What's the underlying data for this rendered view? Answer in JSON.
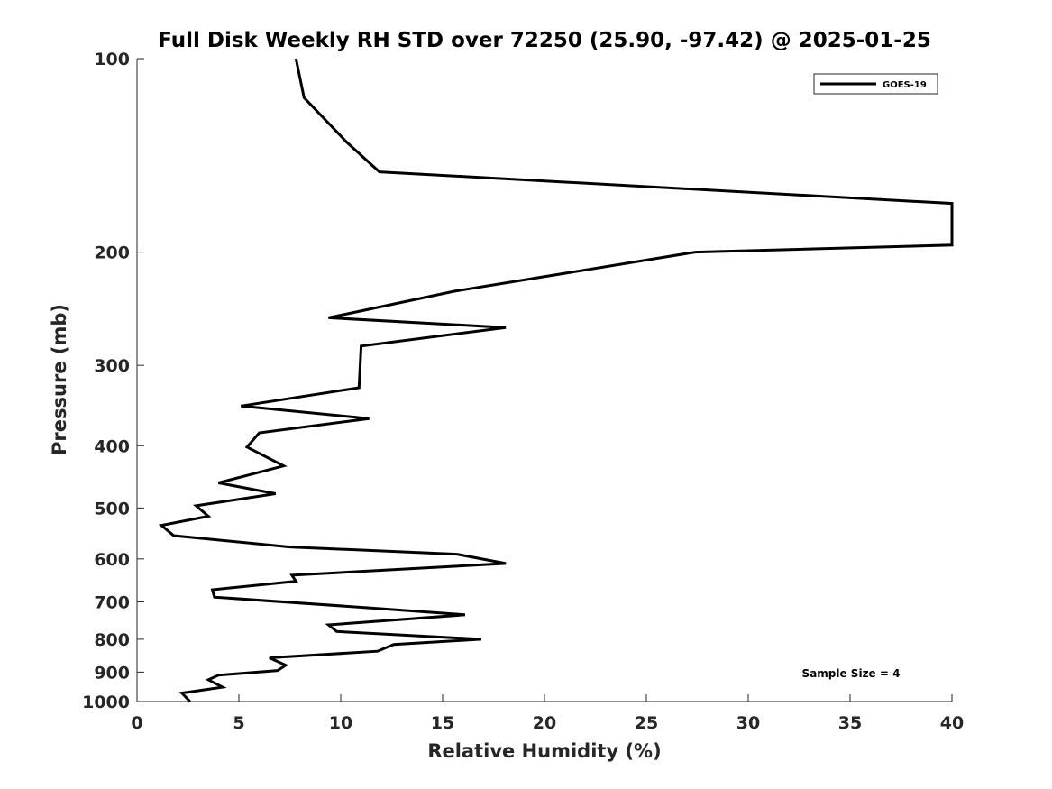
{
  "chart_data": {
    "type": "line",
    "title": "Full Disk Weekly RH STD over 72250 (25.90, -97.42) @ 2025-01-25",
    "xlabel": "Relative Humidity (%)",
    "ylabel": "Pressure (mb)",
    "xlim": [
      0,
      40
    ],
    "ylim": [
      100,
      1000
    ],
    "yscale": "log",
    "ydirection": "reverse",
    "xticks": [
      "0",
      "5",
      "10",
      "15",
      "20",
      "25",
      "30",
      "35",
      "40"
    ],
    "yticks": [
      "100",
      "200",
      "300",
      "400",
      "500",
      "600",
      "700",
      "800",
      "900",
      "1000"
    ],
    "legend": {
      "entries": [
        "GOES-19"
      ],
      "location": "top-right"
    },
    "annotation": "Sample Size = 4",
    "series": [
      {
        "name": "GOES-19",
        "color": "#000000",
        "points": [
          [
            7.8,
            100
          ],
          [
            8.2,
            115
          ],
          [
            10.3,
            135
          ],
          [
            11.9,
            150
          ],
          [
            40,
            168
          ],
          [
            40,
            195
          ],
          [
            27.4,
            200
          ],
          [
            15.6,
            230
          ],
          [
            9.4,
            253
          ],
          [
            18.1,
            262
          ],
          [
            11.0,
            280
          ],
          [
            10.9,
            325
          ],
          [
            5.1,
            347
          ],
          [
            11.4,
            363
          ],
          [
            6.0,
            382
          ],
          [
            5.4,
            402
          ],
          [
            7.2,
            430
          ],
          [
            4.0,
            457
          ],
          [
            6.8,
            475
          ],
          [
            2.9,
            496
          ],
          [
            3.5,
            515
          ],
          [
            1.2,
            532
          ],
          [
            1.8,
            552
          ],
          [
            7.5,
            575
          ],
          [
            15.7,
            590
          ],
          [
            18.1,
            610
          ],
          [
            7.6,
            636
          ],
          [
            7.8,
            650
          ],
          [
            3.7,
            670
          ],
          [
            3.8,
            688
          ],
          [
            11.4,
            715
          ],
          [
            16.1,
            733
          ],
          [
            9.4,
            760
          ],
          [
            9.8,
            778
          ],
          [
            16.9,
            800
          ],
          [
            12.6,
            815
          ],
          [
            11.8,
            835
          ],
          [
            6.5,
            855
          ],
          [
            7.3,
            878
          ],
          [
            6.9,
            895
          ],
          [
            4.0,
            910
          ],
          [
            3.5,
            925
          ],
          [
            4.2,
            950
          ],
          [
            2.2,
            970
          ],
          [
            2.6,
            1000
          ]
        ]
      }
    ]
  }
}
